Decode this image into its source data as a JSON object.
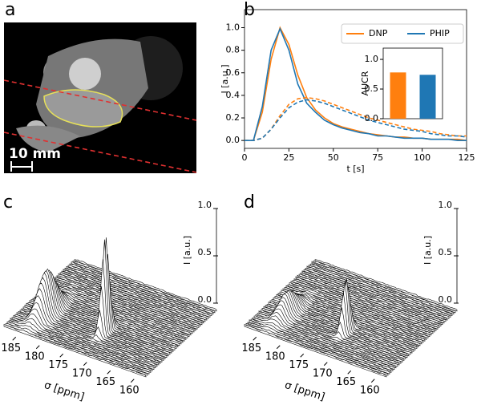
{
  "panel_labels": [
    "a",
    "b",
    "c",
    "d"
  ],
  "scale_bar": "10 mm",
  "chart_data": [
    {
      "type": "line",
      "xlabel": "t [s]",
      "ylabel": "I [a.u.]",
      "x": [
        0,
        5,
        10,
        15,
        20,
        25,
        30,
        35,
        40,
        45,
        50,
        55,
        60,
        65,
        70,
        75,
        80,
        85,
        90,
        95,
        100,
        105,
        110,
        115,
        120,
        125
      ],
      "series": [
        {
          "name": "DNP",
          "color": "#ff7f0e",
          "dashed": false,
          "values": [
            0,
            0,
            0.25,
            0.72,
            1.0,
            0.85,
            0.58,
            0.38,
            0.27,
            0.2,
            0.15,
            0.12,
            0.1,
            0.08,
            0.06,
            0.05,
            0.04,
            0.03,
            0.03,
            0.02,
            0.02,
            0.01,
            0.01,
            0.01,
            0.01,
            0.0
          ]
        },
        {
          "name": "PHIP",
          "color": "#1f77b4",
          "dashed": false,
          "values": [
            0,
            0,
            0.3,
            0.8,
            0.99,
            0.8,
            0.5,
            0.33,
            0.25,
            0.18,
            0.14,
            0.11,
            0.09,
            0.07,
            0.06,
            0.04,
            0.04,
            0.03,
            0.02,
            0.02,
            0.02,
            0.01,
            0.01,
            0.01,
            0.0,
            0.0
          ]
        },
        {
          "name": "DNP",
          "color": "#ff7f0e",
          "dashed": true,
          "values": [
            0,
            0,
            0.02,
            0.1,
            0.22,
            0.32,
            0.37,
            0.38,
            0.37,
            0.35,
            0.32,
            0.29,
            0.26,
            0.23,
            0.2,
            0.18,
            0.16,
            0.14,
            0.12,
            0.1,
            0.09,
            0.08,
            0.06,
            0.05,
            0.04,
            0.04
          ]
        },
        {
          "name": "PHIP",
          "color": "#1f77b4",
          "dashed": true,
          "values": [
            0,
            0,
            0.02,
            0.1,
            0.2,
            0.29,
            0.34,
            0.36,
            0.35,
            0.33,
            0.3,
            0.27,
            0.24,
            0.21,
            0.18,
            0.16,
            0.14,
            0.12,
            0.1,
            0.09,
            0.08,
            0.06,
            0.05,
            0.04,
            0.04,
            0.03
          ]
        }
      ],
      "xlim": [
        0,
        125
      ],
      "xticks": [
        0,
        25,
        50,
        75,
        100,
        125
      ],
      "ylim": [
        -0.07,
        1.16
      ],
      "yticks": [
        {
          "value": 0,
          "label": "0.0"
        },
        {
          "value": 0.2,
          "label": "0.2"
        },
        {
          "value": 0.4,
          "label": "0.4"
        },
        {
          "value": 0.6,
          "label": "0.6"
        },
        {
          "value": 0.8,
          "label": "0.8"
        },
        {
          "value": 1.0,
          "label": "1.0"
        }
      ],
      "legend": "upper right"
    },
    {
      "type": "bar",
      "ylabel": "AUCR",
      "categories": [
        null,
        null
      ],
      "values": [
        0.78,
        0.74
      ],
      "colors": [
        "#ff7f0e",
        "#1f77b4"
      ],
      "ylim": [
        0,
        1.19
      ],
      "yticks": [
        {
          "value": 0,
          "label": "0.0"
        },
        {
          "value": 0.5,
          "label": "0.5"
        },
        {
          "value": 1.0,
          "label": "1.0"
        }
      ]
    },
    {
      "type": "waterfall",
      "xlabel": "σ [ppm]",
      "ylabel": "I [a.u.]",
      "xlim": [
        187.5,
        157.5
      ],
      "xticks": [
        185,
        180,
        175,
        170,
        165,
        160
      ],
      "ylim": [
        0,
        1
      ],
      "yticks": [
        {
          "value": 0,
          "label": "0.0"
        },
        {
          "value": 0.5,
          "label": "0.5"
        },
        {
          "value": 1.0,
          "label": "1.0"
        }
      ]
    },
    {
      "type": "waterfall",
      "xlabel": "σ [ppm]",
      "ylabel": "I [a.u.]",
      "xlim": [
        187.5,
        157.5
      ],
      "xticks": [
        185,
        180,
        175,
        170,
        165,
        160
      ],
      "ylim": [
        0,
        1
      ],
      "yticks": [
        {
          "value": 0,
          "label": "0.0"
        },
        {
          "value": 0.5,
          "label": "0.5"
        },
        {
          "value": 1.0,
          "label": "1.0"
        }
      ]
    }
  ]
}
